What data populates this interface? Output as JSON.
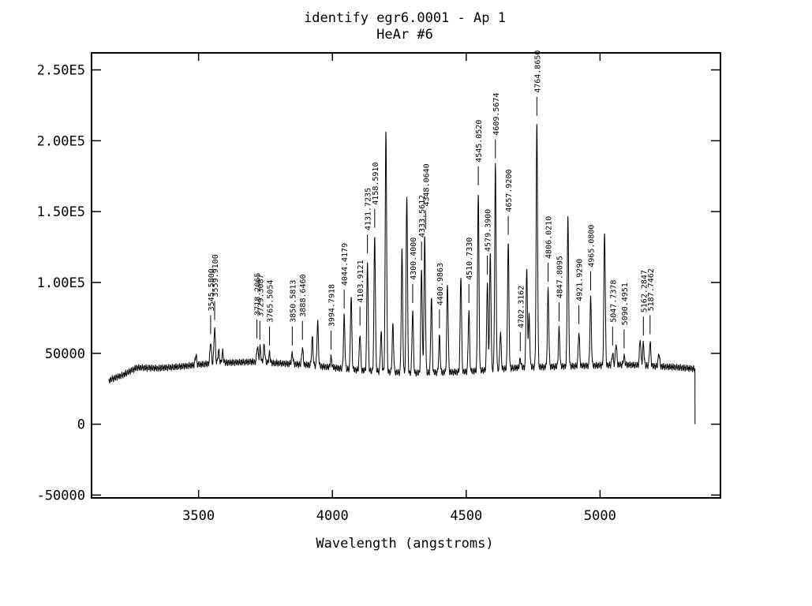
{
  "chart_data": {
    "type": "line",
    "title": "identify egr6.0001 - Ap 1",
    "subtitle": "HeAr #6",
    "xlabel": "Wavelength (angstroms)",
    "ylabel": "",
    "xlim": [
      3100,
      5450
    ],
    "ylim": [
      -52000,
      262000
    ],
    "x_ticks": [
      3500,
      4000,
      4500,
      5000
    ],
    "x_tick_labels": [
      "3500",
      "4000",
      "4500",
      "5000"
    ],
    "y_ticks": [
      -50000,
      0,
      50000,
      100000,
      150000,
      200000,
      250000
    ],
    "y_tick_labels": [
      "-50000",
      "0",
      "50000",
      "1.00E5",
      "1.50E5",
      "2.00E5",
      "2.50E5"
    ],
    "grid": false,
    "spectrum": {
      "x_start": 3165,
      "x_end": 5355,
      "continuum": [
        [
          3165,
          31000
        ],
        [
          3220,
          35000
        ],
        [
          3270,
          40000
        ],
        [
          3350,
          39500
        ],
        [
          3450,
          41000
        ],
        [
          3550,
          43000
        ],
        [
          3700,
          44000
        ],
        [
          3900,
          42000
        ],
        [
          4100,
          38000
        ],
        [
          4300,
          36000
        ],
        [
          4500,
          37000
        ],
        [
          4700,
          40000
        ],
        [
          4900,
          41000
        ],
        [
          5100,
          42000
        ],
        [
          5300,
          40000
        ],
        [
          5355,
          39000
        ]
      ],
      "drop_to": 0
    },
    "peaks": [
      {
        "x": 3490,
        "y": 49000
      },
      {
        "x": 3545,
        "y": 58000
      },
      {
        "x": 3560,
        "y": 68000
      },
      {
        "x": 3575,
        "y": 52000
      },
      {
        "x": 3590,
        "y": 51000
      },
      {
        "x": 3720,
        "y": 55000
      },
      {
        "x": 3730,
        "y": 54000
      },
      {
        "x": 3745,
        "y": 56000
      },
      {
        "x": 3765,
        "y": 50000
      },
      {
        "x": 3850,
        "y": 50000
      },
      {
        "x": 3888,
        "y": 54000
      },
      {
        "x": 3925,
        "y": 61000
      },
      {
        "x": 3945,
        "y": 72000
      },
      {
        "x": 3995,
        "y": 47000
      },
      {
        "x": 4044,
        "y": 76000
      },
      {
        "x": 4070,
        "y": 90000
      },
      {
        "x": 4103,
        "y": 64000
      },
      {
        "x": 4131,
        "y": 115000
      },
      {
        "x": 4158,
        "y": 133000
      },
      {
        "x": 4182,
        "y": 65000
      },
      {
        "x": 4200,
        "y": 208000
      },
      {
        "x": 4226,
        "y": 70000
      },
      {
        "x": 4260,
        "y": 122000
      },
      {
        "x": 4278,
        "y": 162000
      },
      {
        "x": 4300,
        "y": 80000
      },
      {
        "x": 4333,
        "y": 110000
      },
      {
        "x": 4345,
        "y": 132000
      },
      {
        "x": 4370,
        "y": 90000
      },
      {
        "x": 4400,
        "y": 62000
      },
      {
        "x": 4430,
        "y": 99000
      },
      {
        "x": 4480,
        "y": 105000
      },
      {
        "x": 4510,
        "y": 80000
      },
      {
        "x": 4545,
        "y": 163000
      },
      {
        "x": 4579,
        "y": 100000
      },
      {
        "x": 4590,
        "y": 120000
      },
      {
        "x": 4609,
        "y": 182000
      },
      {
        "x": 4628,
        "y": 65000
      },
      {
        "x": 4657,
        "y": 128000
      },
      {
        "x": 4702,
        "y": 46000
      },
      {
        "x": 4726,
        "y": 110000
      },
      {
        "x": 4735,
        "y": 76000
      },
      {
        "x": 4764,
        "y": 212000
      },
      {
        "x": 4806,
        "y": 95000
      },
      {
        "x": 4847,
        "y": 67000
      },
      {
        "x": 4880,
        "y": 146000
      },
      {
        "x": 4921,
        "y": 65000
      },
      {
        "x": 4965,
        "y": 89000
      },
      {
        "x": 5017,
        "y": 136000
      },
      {
        "x": 5047,
        "y": 50000
      },
      {
        "x": 5060,
        "y": 57000
      },
      {
        "x": 5090,
        "y": 48000
      },
      {
        "x": 5150,
        "y": 60000
      },
      {
        "x": 5162,
        "y": 57000
      },
      {
        "x": 5187,
        "y": 58000
      },
      {
        "x": 5220,
        "y": 50000
      }
    ],
    "identified_lines": [
      {
        "label": "3545.5800",
        "x": 3545,
        "y": 58000
      },
      {
        "label": "3559.9100",
        "x": 3560,
        "y": 68000
      },
      {
        "label": "3718.2065",
        "x": 3718,
        "y": 55000
      },
      {
        "label": "3729.3087",
        "x": 3729,
        "y": 54000
      },
      {
        "label": "3765.5054",
        "x": 3765,
        "y": 50000
      },
      {
        "label": "3850.5813",
        "x": 3850,
        "y": 50000
      },
      {
        "label": "3888.6460",
        "x": 3888,
        "y": 54000
      },
      {
        "label": "3994.7918",
        "x": 3995,
        "y": 47000
      },
      {
        "label": "4044.4179",
        "x": 4044,
        "y": 76000
      },
      {
        "label": "4103.9121",
        "x": 4103,
        "y": 64000
      },
      {
        "label": "4131.7235",
        "x": 4131,
        "y": 115000
      },
      {
        "label": "4158.5910",
        "x": 4158,
        "y": 133000
      },
      {
        "label": "4300.4000",
        "x": 4300,
        "y": 80000
      },
      {
        "label": "4333.5612",
        "x": 4333,
        "y": 110000
      },
      {
        "label": "4348.0640",
        "x": 4348,
        "y": 132000
      },
      {
        "label": "4400.9863",
        "x": 4400,
        "y": 62000
      },
      {
        "label": "4510.7330",
        "x": 4510,
        "y": 80000
      },
      {
        "label": "4545.0520",
        "x": 4545,
        "y": 163000
      },
      {
        "label": "4579.3900",
        "x": 4579,
        "y": 100000
      },
      {
        "label": "4609.5674",
        "x": 4609,
        "y": 182000
      },
      {
        "label": "4657.9200",
        "x": 4657,
        "y": 128000
      },
      {
        "label": "4702.3162",
        "x": 4702,
        "y": 46000
      },
      {
        "label": "4764.8650",
        "x": 4764,
        "y": 212000
      },
      {
        "label": "4806.0210",
        "x": 4806,
        "y": 95000
      },
      {
        "label": "4847.8095",
        "x": 4847,
        "y": 67000
      },
      {
        "label": "4921.9290",
        "x": 4921,
        "y": 65000
      },
      {
        "label": "4965.0800",
        "x": 4965,
        "y": 89000
      },
      {
        "label": "5047.7378",
        "x": 5047,
        "y": 50000
      },
      {
        "label": "5090.4951",
        "x": 5090,
        "y": 48000
      },
      {
        "label": "5162.2847",
        "x": 5162,
        "y": 57000
      },
      {
        "label": "5187.7462",
        "x": 5187,
        "y": 58000
      }
    ]
  }
}
